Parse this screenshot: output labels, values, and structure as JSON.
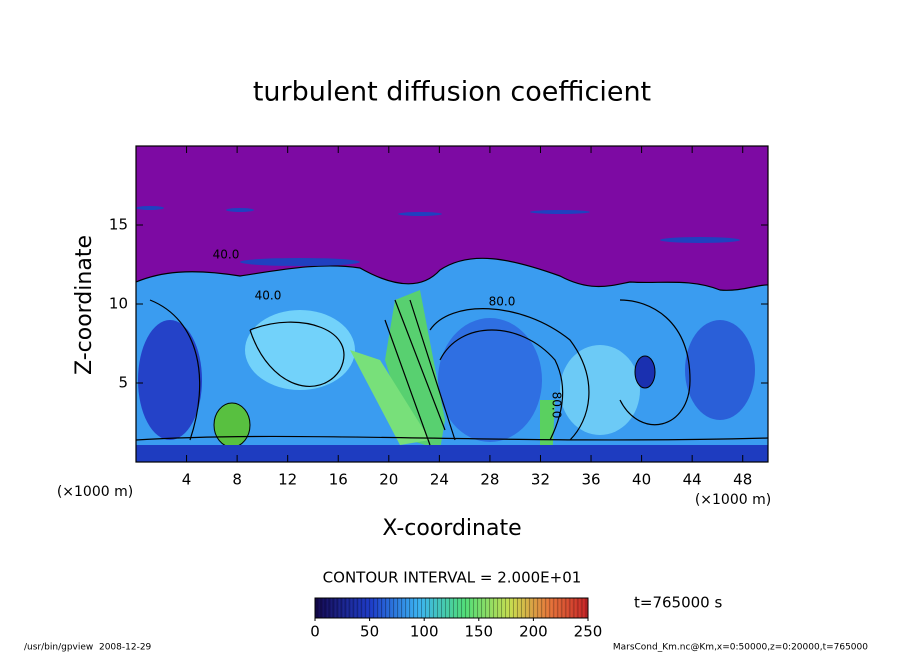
{
  "chart_data": {
    "type": "contour",
    "title": "turbulent diffusion coefficient",
    "x_label": "X-coordinate",
    "y_label": "Z-coordinate",
    "x_unit": "(×1000 m)",
    "y_unit": "(×1000 m)",
    "xlim": [
      0,
      50
    ],
    "xticks": [
      4,
      8,
      12,
      16,
      20,
      24,
      28,
      32,
      36,
      40,
      44,
      48
    ],
    "ylim": [
      0,
      20
    ],
    "yticks": [
      5,
      10,
      15
    ],
    "contour_interval": "CONTOUR INTERVAL = 2.000E+01",
    "time_label": "t=765000 s",
    "colorbar": {
      "lim": [
        0,
        250
      ],
      "ticks": [
        0,
        50,
        100,
        150,
        200,
        250
      ]
    },
    "contour_labels": [
      "40.0",
      "80.0",
      "80.0",
      "40.0"
    ]
  },
  "footer": {
    "left": "/usr/bin/gpview  2008-12-29",
    "right": "MarsCond_Km.nc@Km,x=0:50000,z=0:20000,t=765000"
  }
}
